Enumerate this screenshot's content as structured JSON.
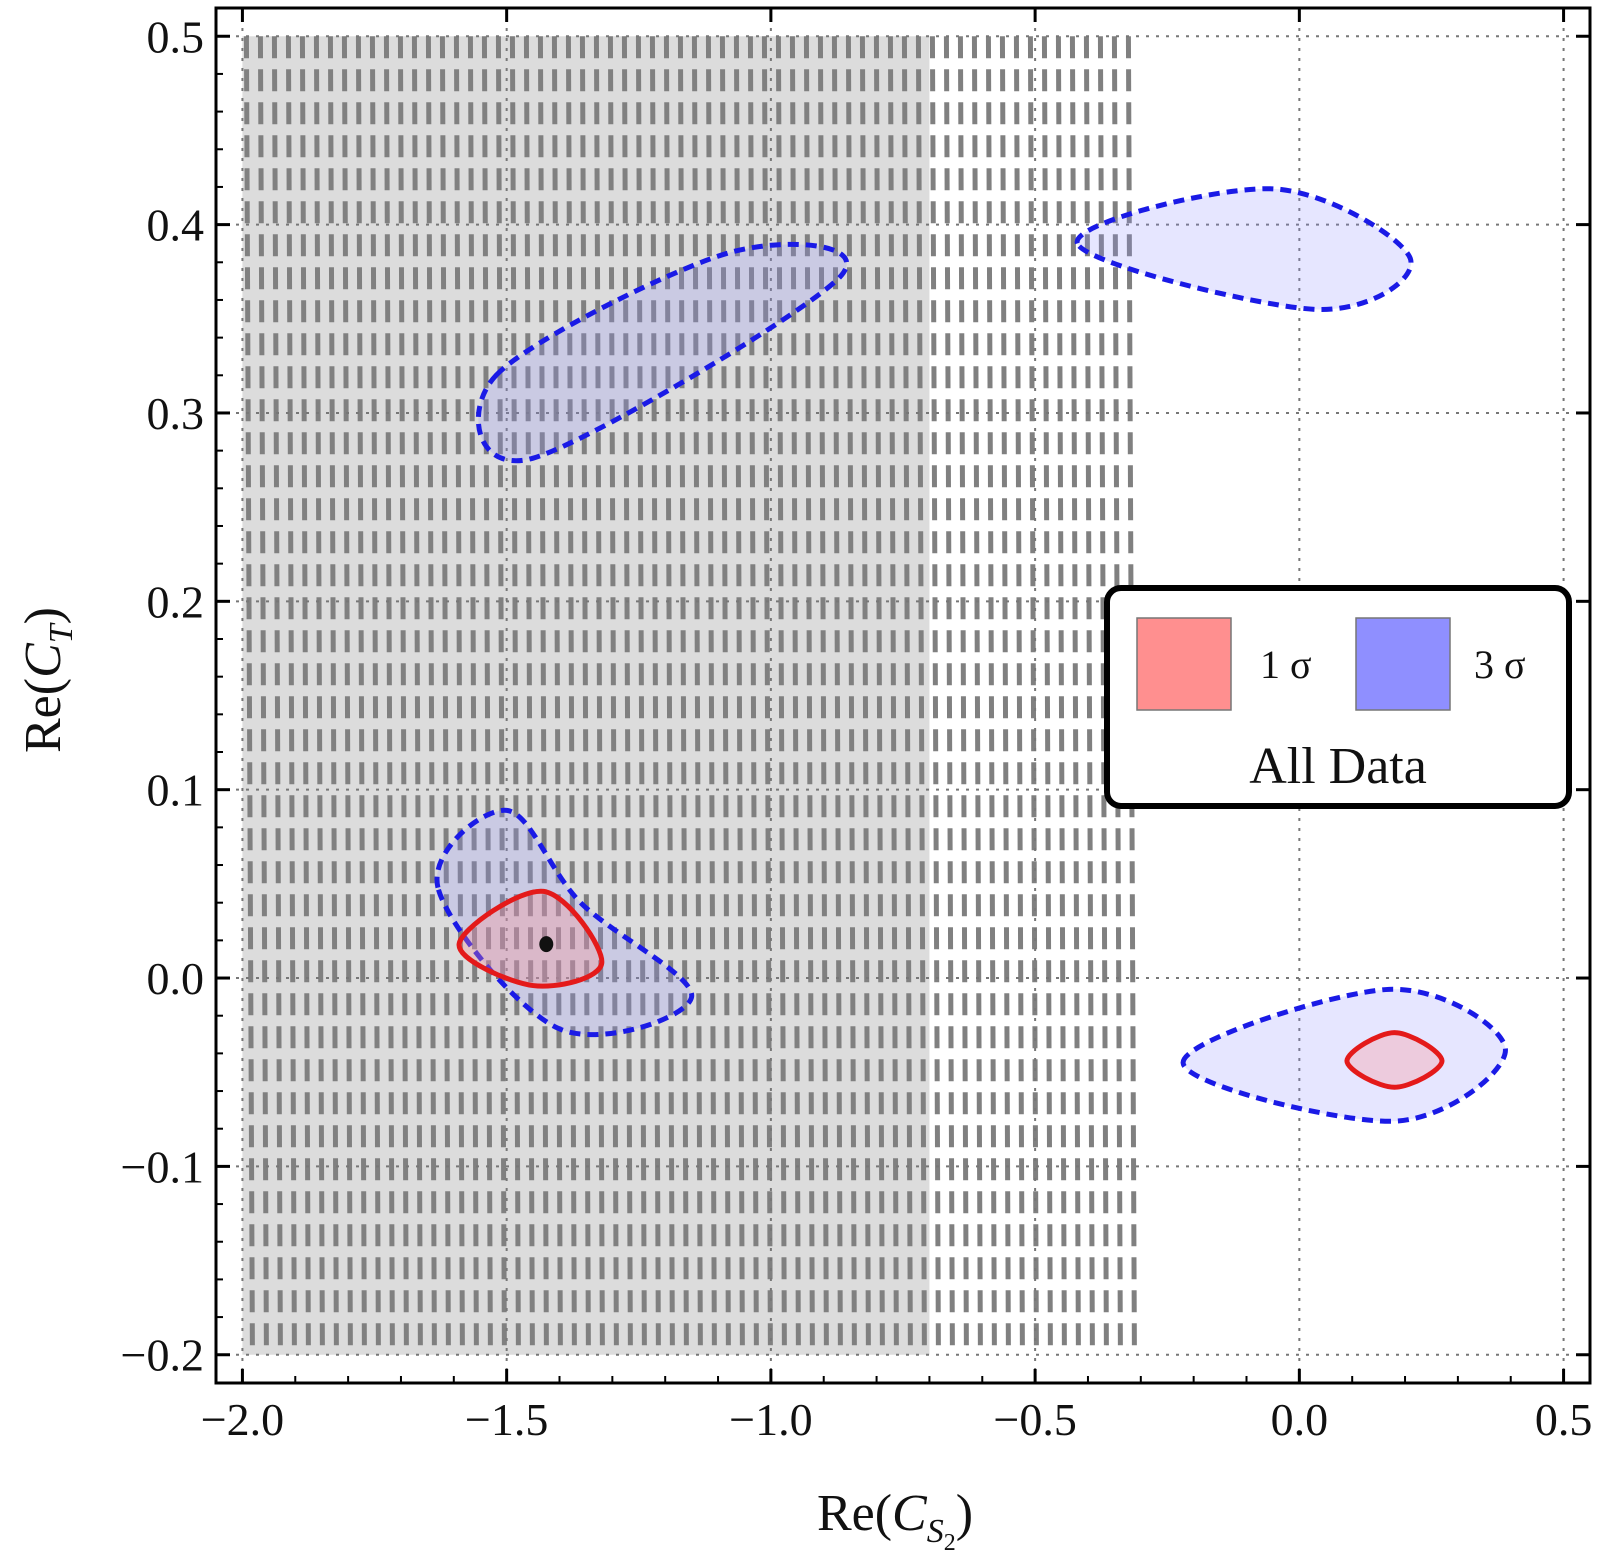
{
  "chart_data": {
    "type": "contour",
    "xlabel": "Re(C_S2)",
    "ylabel": "Re(C_T)",
    "xlim": [
      -2.05,
      0.55
    ],
    "ylim": [
      -0.215,
      0.515
    ],
    "x_ticks": [
      "−2.0",
      "−1.5",
      "−1.0",
      "−0.5",
      "0.0",
      "0.5"
    ],
    "x_tick_values": [
      -2.0,
      -1.5,
      -1.0,
      -0.5,
      0.0,
      0.5
    ],
    "y_ticks": [
      "−0.2",
      "−0.1",
      "0.0",
      "0.1",
      "0.2",
      "0.3",
      "0.4",
      "0.5"
    ],
    "y_tick_values": [
      -0.2,
      -0.1,
      0.0,
      0.1,
      0.2,
      0.3,
      0.4,
      0.5
    ],
    "grid": true,
    "excluded_region": {
      "shaded_x": [
        -2.0,
        -0.7
      ],
      "hatched_x": [
        -2.0,
        -0.3
      ],
      "y": [
        -0.2,
        0.5
      ],
      "color": "#dcdcdc"
    },
    "series": [
      {
        "name": "1 σ",
        "color": "#ff8f8f",
        "edge": "#e41a1a",
        "regions": [
          {
            "x": [
              -1.59,
              -1.43,
              -1.32,
              -1.45
            ],
            "y": [
              0.018,
              0.046,
              0.008,
              -0.004
            ]
          },
          {
            "x": [
              0.09,
              0.18,
              0.27,
              0.18
            ],
            "y": [
              -0.044,
              -0.029,
              -0.044,
              -0.058
            ]
          }
        ]
      },
      {
        "name": "3 σ",
        "color": "#8f8fff",
        "edge": "#1a1ae6",
        "regions": [
          {
            "x": [
              -1.63,
              -1.5,
              -1.36,
              -1.15,
              -1.4
            ],
            "y": [
              0.048,
              0.089,
              0.04,
              -0.01,
              -0.027
            ]
          },
          {
            "x": [
              -1.52,
              -1.08,
              -0.87,
              -1.45
            ],
            "y": [
              0.32,
              0.385,
              0.372,
              0.276
            ]
          },
          {
            "x": [
              -0.42,
              -0.05,
              0.21,
              0.03
            ],
            "y": [
              0.39,
              0.419,
              0.382,
              0.355
            ]
          },
          {
            "x": [
              -0.22,
              0.17,
              0.39,
              0.18
            ],
            "y": [
              -0.045,
              -0.006,
              -0.038,
              -0.076
            ]
          }
        ]
      }
    ],
    "best_fit_point": {
      "x": -1.425,
      "y": 0.018
    },
    "legend": {
      "entries": [
        {
          "label": "1 σ",
          "color": "#ff8f8f"
        },
        {
          "label": "3 σ",
          "color": "#8f8fff"
        }
      ],
      "title": "All Data",
      "position": "center-right"
    }
  }
}
